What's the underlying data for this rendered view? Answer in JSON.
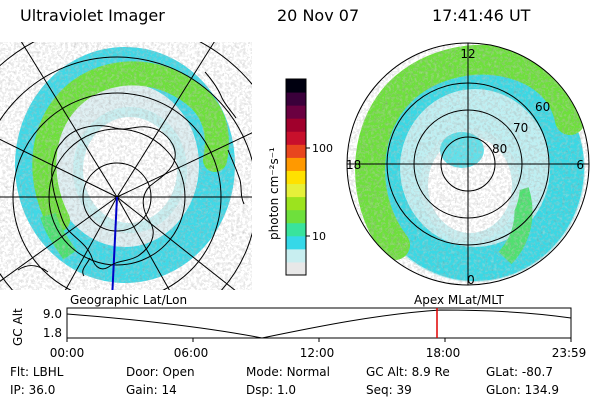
{
  "header": {
    "instrument": "Ultraviolet Imager",
    "date": "20 Nov 07",
    "time": "17:41:46 UT"
  },
  "colorbar": {
    "label": "photon cm⁻²s⁻¹",
    "ticks": [
      "100",
      "10"
    ],
    "scale": "log",
    "colors": [
      "#e8e8e8",
      "#c8eef0",
      "#36d8e8",
      "#39e39c",
      "#6ee03c",
      "#9ce31e",
      "#e6f03a",
      "#ffe100",
      "#ff9900",
      "#e8461e",
      "#c8102c",
      "#a0002c",
      "#6a0040",
      "#3a003a",
      "#000010"
    ]
  },
  "geo_map": {
    "label": "Geographic Lat/Lon"
  },
  "mag_map": {
    "label": "Apex  MLat/MLT",
    "mlt_labels": {
      "top": "12",
      "left": "18",
      "right": "6",
      "bottom": "0"
    },
    "lat_labels": [
      "60",
      "70",
      "80"
    ]
  },
  "altitude_plot": {
    "ylabel": "GC Alt",
    "y_ticks": [
      "9.0",
      "1.8"
    ],
    "x_ticks": [
      "00:00",
      "06:00",
      "12:00",
      "18:00",
      "23:59"
    ],
    "cursor_color": "#e00000"
  },
  "status": {
    "row1": [
      {
        "label": "Flt:",
        "value": "LBHL"
      },
      {
        "label": "Door:",
        "value": "Open"
      },
      {
        "label": "Mode:",
        "value": "Normal"
      },
      {
        "label": "GC Alt:",
        "value": "8.9 Re"
      },
      {
        "label": "GLat:",
        "value": "-80.7"
      }
    ],
    "row2": [
      {
        "label": "IP:",
        "value": "36.0"
      },
      {
        "label": "Gain:",
        "value": "14"
      },
      {
        "label": "Dsp:",
        "value": "1.0"
      },
      {
        "label": "Seq:",
        "value": "39"
      },
      {
        "label": "GLon:",
        "value": "134.9"
      }
    ]
  }
}
